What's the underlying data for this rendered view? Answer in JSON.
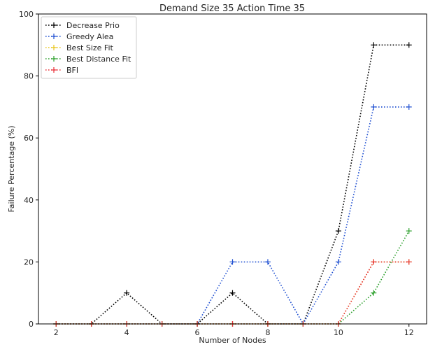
{
  "chart_data": {
    "type": "line",
    "title": "Demand Size 35 Action Time 35",
    "xlabel": "Number of Nodes",
    "ylabel": "Failure Percentage (%)",
    "xlim": [
      1.5,
      12.5
    ],
    "ylim": [
      0,
      100
    ],
    "xticks": [
      2,
      4,
      6,
      8,
      10,
      12
    ],
    "yticks": [
      0,
      20,
      40,
      60,
      80,
      100
    ],
    "x": [
      2,
      3,
      4,
      5,
      6,
      7,
      8,
      9,
      10,
      11,
      12
    ],
    "legend_position": "upper-left",
    "grid": false,
    "series": [
      {
        "name": "Decrease Prio",
        "color": "#000000",
        "values": [
          0,
          0,
          10,
          0,
          0,
          10,
          0,
          0,
          30,
          90,
          90
        ]
      },
      {
        "name": "Greedy Alea",
        "color": "#1f4fd1",
        "values": [
          0,
          0,
          0,
          0,
          0,
          20,
          20,
          0,
          20,
          70,
          70
        ]
      },
      {
        "name": "Best Size Fit",
        "color": "#e8c51a",
        "values": [
          0,
          0,
          0,
          0,
          0,
          0,
          0,
          0,
          0,
          20,
          20
        ]
      },
      {
        "name": "Best Distance Fit",
        "color": "#2ca02c",
        "values": [
          0,
          0,
          0,
          0,
          0,
          0,
          0,
          0,
          0,
          10,
          30
        ]
      },
      {
        "name": "BFI",
        "color": "#e8323a",
        "values": [
          0,
          0,
          0,
          0,
          0,
          0,
          0,
          0,
          0,
          20,
          20
        ]
      }
    ]
  }
}
